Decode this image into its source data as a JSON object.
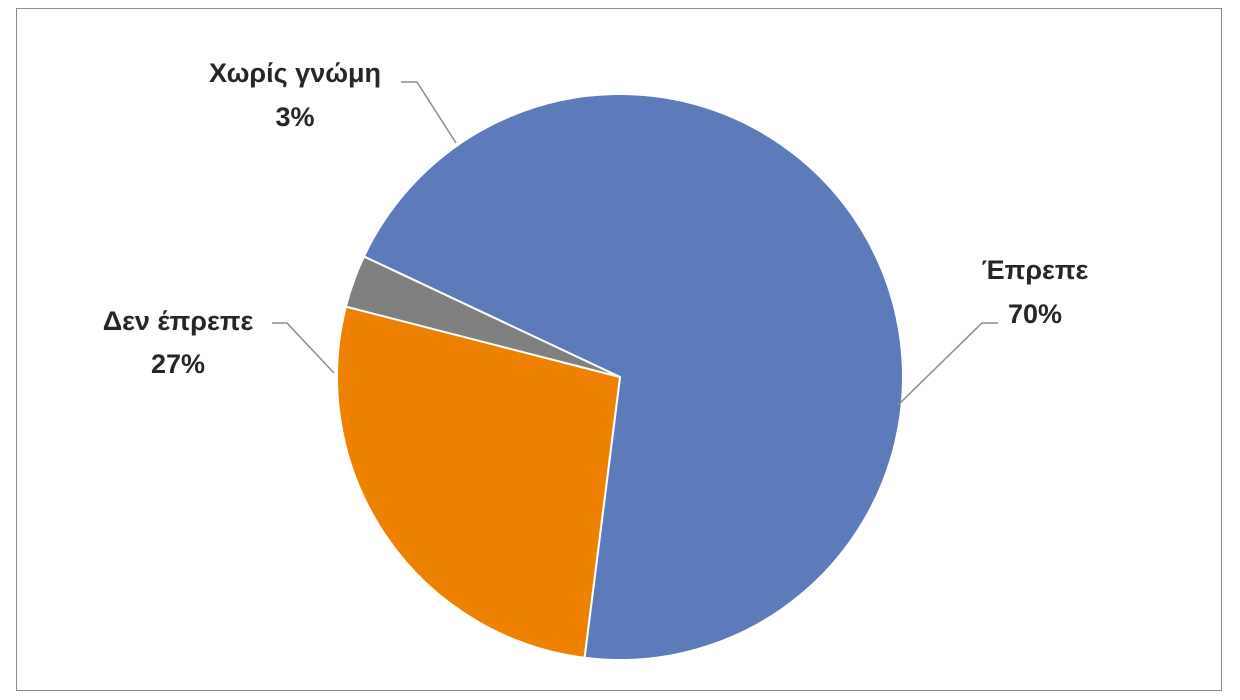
{
  "chart_data": {
    "type": "pie",
    "title": "",
    "slices": [
      {
        "label": "Έπρεπε",
        "value": 70,
        "percent_label": "70%",
        "color": "#5B7BBA"
      },
      {
        "label": "Δεν έπρεπε",
        "value": 27,
        "percent_label": "27%",
        "color": "#EE8100"
      },
      {
        "label": "Χωρίς γνώμη",
        "value": 3,
        "percent_label": "3%",
        "color": "#808080"
      }
    ],
    "legend": "none",
    "data_labels": "outside-with-leader-lines"
  }
}
